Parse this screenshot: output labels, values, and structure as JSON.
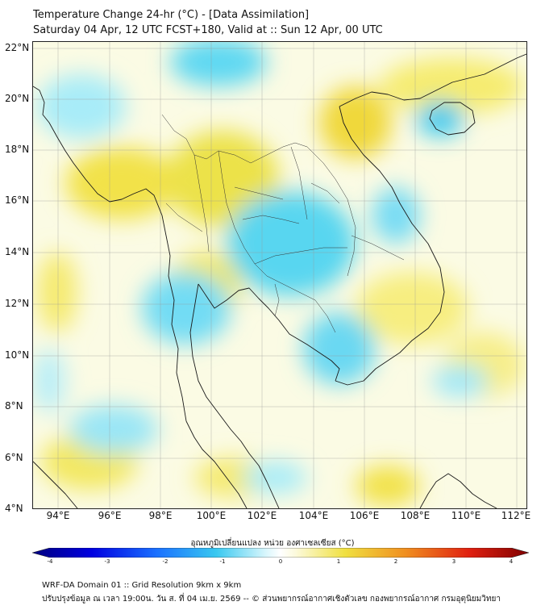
{
  "header": {
    "title": "Temperature Change 24-hr (°C) - [Data Assimilation]",
    "subtitle": "Saturday 04 Apr, 12 UTC FCST+180, Valid at :: Sun 12 Apr, 00 UTC"
  },
  "map": {
    "lat_labels": [
      "22°N",
      "20°N",
      "18°N",
      "16°N",
      "14°N",
      "12°N",
      "10°N",
      "8°N",
      "6°N",
      "4°N"
    ],
    "lon_labels": [
      "94°E",
      "96°E",
      "98°E",
      "100°E",
      "102°E",
      "104°E",
      "106°E",
      "108°E",
      "110°E",
      "112°E"
    ],
    "lat_range": [
      4,
      22.3
    ],
    "lon_range": [
      93,
      112.4
    ]
  },
  "colorbar": {
    "title": "อุณหภูมิเปลี่ยนแปลง หน่วย องศาเซลเซียส (°C)",
    "ticks": [
      "-4",
      "-3",
      "-2",
      "-1",
      "0",
      "1",
      "2",
      "3",
      "4"
    ],
    "range": [
      -4,
      4
    ]
  },
  "footer": {
    "line1": "WRF-DA Domain 01 :: Grid Resolution 9km x 9km",
    "line2": "ปรับปรุงข้อมูล ณ เวลา 19:00น. วัน ส. ที่ 04 เม.ย. 2569 -- © ส่วนพยากรณ์อากาศเชิงตัวเลข กองพยากรณ์อากาศ กรมอุตุนิยมวิทยา"
  },
  "colors": {
    "neg_strong": "#00007f",
    "neg_mid": "#38c8f0",
    "neutral": "#ffffff",
    "pos_mid": "#f0e040",
    "pos_strong": "#7f0000"
  }
}
